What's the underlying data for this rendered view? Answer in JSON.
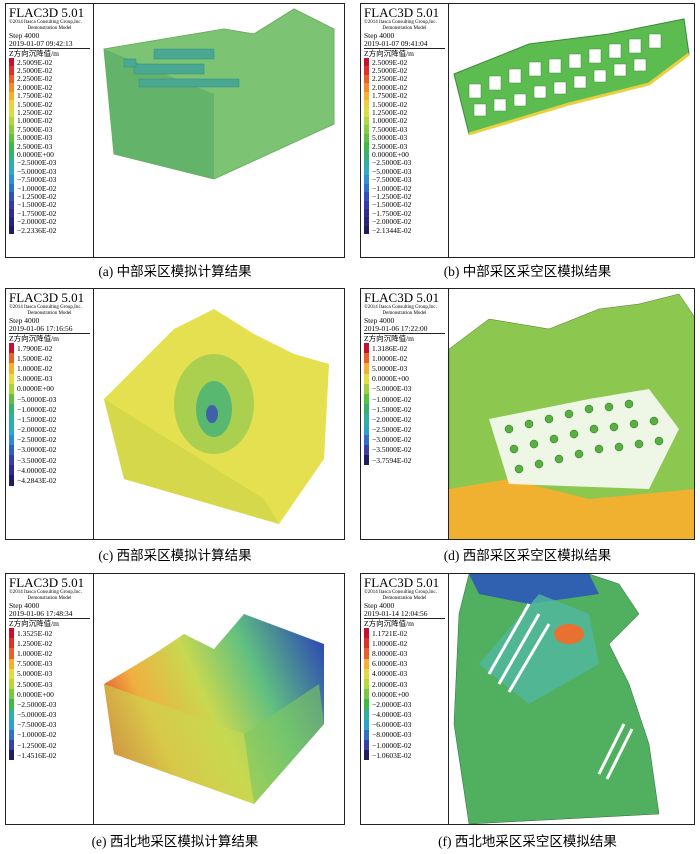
{
  "panels": [
    {
      "header": {
        "title": "FLAC3D 5.01",
        "copyright": "©2014 Itasca Consulting Group,Inc.",
        "model": "Demonstration Model",
        "step": "Step 4000",
        "date": "2019-01-07 09:42:13"
      },
      "legend_title": "Z方向沉降值/m",
      "legend": [
        "2.5009E-02",
        "2.5000E-02",
        "2.2500E-02",
        "2.0000E-02",
        "1.7500E-02",
        "1.5000E-02",
        "1.2500E-02",
        "1.0000E-02",
        "7.5000E-03",
        "5.0000E-03",
        "2.5000E-03",
        "0.0000E+00",
        "−2.5000E-03",
        "−5.0000E-03",
        "−7.5000E-03",
        "−1.0000E-02",
        "−1.2500E-02",
        "−1.5000E-02",
        "−1.7500E-02",
        "−2.0000E-02",
        "−2.2336E-02"
      ],
      "colors": [
        "#c8102e",
        "#e0302a",
        "#e8602a",
        "#f08c2c",
        "#f4b030",
        "#f0d040",
        "#d8e040",
        "#b0d840",
        "#88cc40",
        "#60c040",
        "#40b848",
        "#38b070",
        "#30b0a0",
        "#30a8c8",
        "#3090d0",
        "#3070c8",
        "#3050b8",
        "#3838a8",
        "#302c90",
        "#282478",
        "#201c60"
      ],
      "caption": "(a) 中部采区模拟计算结果"
    },
    {
      "header": {
        "title": "FLAC3D 5.01",
        "copyright": "©2014 Itasca Consulting Group,Inc.",
        "model": "Demonstration Model",
        "step": "Step 4000",
        "date": "2019-01-07 09:41:04"
      },
      "legend_title": "Z方向沉降值/m",
      "legend": [
        "2.5009E-02",
        "2.5000E-02",
        "2.2500E-02",
        "2.0000E-02",
        "1.7500E-02",
        "1.5000E-02",
        "1.2500E-02",
        "1.0000E-02",
        "7.5000E-03",
        "5.0000E-03",
        "2.5000E-03",
        "0.0000E+00",
        "−2.5000E-03",
        "−5.0000E-03",
        "−7.5000E-03",
        "−1.0000E-02",
        "−1.2500E-02",
        "−1.5000E-02",
        "−1.7500E-02",
        "−2.0000E-02",
        "−2.1344E-02"
      ],
      "colors": [
        "#c8102e",
        "#e0302a",
        "#e8602a",
        "#f08c2c",
        "#f4b030",
        "#f0d040",
        "#d8e040",
        "#b0d840",
        "#88cc40",
        "#60c040",
        "#40b848",
        "#38b070",
        "#30b0a0",
        "#30a8c8",
        "#3090d0",
        "#3070c8",
        "#3050b8",
        "#3838a8",
        "#302c90",
        "#282478",
        "#201c60"
      ],
      "caption": "(b) 中部采区采空区模拟结果"
    },
    {
      "header": {
        "title": "FLAC3D 5.01",
        "copyright": "©2014 Itasca Consulting Group,Inc.",
        "model": "Demonstration Model",
        "step": "Step 4000",
        "date": "2019-01-06 17:16:56"
      },
      "legend_title": "Z方向沉降值/m",
      "legend": [
        "1.7900E-02",
        "1.5000E-02",
        "1.0000E-02",
        "5.0000E-03",
        "0.0000E+00",
        "−5.0000E-03",
        "−1.0000E-02",
        "−1.5000E-02",
        "−2.0000E-02",
        "−2.5000E-02",
        "−3.0000E-02",
        "−3.5000E-02",
        "−4.0000E-02",
        "−4.2843E-02"
      ],
      "colors": [
        "#c8102e",
        "#e8602a",
        "#f4b030",
        "#e0e040",
        "#a8d440",
        "#60c040",
        "#38b070",
        "#30b0a0",
        "#30a8c8",
        "#3088d0",
        "#3060c0",
        "#3840a8",
        "#302c90",
        "#201c60"
      ],
      "caption": "(c) 西部采区模拟计算结果"
    },
    {
      "header": {
        "title": "FLAC3D 5.01",
        "copyright": "©2014 Itasca Consulting Group,Inc.",
        "model": "Demonstration Model",
        "step": "Step 4000",
        "date": "2019-01-06 17:22:00"
      },
      "legend_title": "Z方向沉降值/m",
      "legend": [
        "1.3186E-02",
        "1.0000E-02",
        "5.0000E-03",
        "0.0000E+00",
        "−5.0000E-03",
        "−1.0000E-02",
        "−1.5000E-02",
        "−2.0000E-02",
        "−2.5000E-02",
        "−3.0000E-02",
        "−3.5000E-02",
        "−3.7594E-02"
      ],
      "colors": [
        "#c8102e",
        "#e8602a",
        "#f4b030",
        "#e0e040",
        "#a0d040",
        "#58c040",
        "#38b070",
        "#30b0a0",
        "#30a0cc",
        "#3070c8",
        "#3840a8",
        "#201c60"
      ],
      "caption": "(d) 西部采区采空区模拟结果"
    },
    {
      "header": {
        "title": "FLAC3D 5.01",
        "copyright": "©2014 Itasca Consulting Group,Inc.",
        "model": "Demonstration Model",
        "step": "Step 4000",
        "date": "2019-01-06 17:48:34"
      },
      "legend_title": "Z方向沉降值/m",
      "legend": [
        "1.3525E-02",
        "1.2500E-02",
        "1.0000E-02",
        "7.5000E-03",
        "5.0000E-03",
        "2.5000E-03",
        "0.0000E+00",
        "−2.5000E-03",
        "−5.0000E-03",
        "−7.5000E-03",
        "−1.0000E-02",
        "−1.2500E-02",
        "−1.4516E-02"
      ],
      "colors": [
        "#c8102e",
        "#e0302a",
        "#e8602a",
        "#f4b030",
        "#e8d840",
        "#b8d840",
        "#78c840",
        "#40b848",
        "#30b0a0",
        "#30a0cc",
        "#3070c8",
        "#3840a8",
        "#201c60"
      ],
      "caption": "(e) 西北地采区模拟计算结果"
    },
    {
      "header": {
        "title": "FLAC3D 5.01",
        "copyright": "©2014 Itasca Consulting Group,Inc.",
        "model": "Demonstration Model",
        "step": "Step 4000",
        "date": "2019-01-14 12:04:56"
      },
      "legend_title": "Z方向沉降值/m",
      "legend": [
        "1.1721E-02",
        "1.0000E-02",
        "8.0000E-03",
        "6.0000E-03",
        "4.0000E-03",
        "2.0000E-03",
        "0.0000E+00",
        "−2.0000E-03",
        "−4.0000E-03",
        "−6.0000E-03",
        "−8.0000E-03",
        "−1.0000E-02",
        "−1.0603E-02"
      ],
      "colors": [
        "#c8102e",
        "#e0302a",
        "#e8602a",
        "#f4b030",
        "#e8d840",
        "#b8d840",
        "#78c840",
        "#40b848",
        "#30b0a0",
        "#30a0cc",
        "#3070c8",
        "#3840a8",
        "#201c60"
      ],
      "caption": "(f) 西北地采区采空区模拟结果"
    }
  ]
}
